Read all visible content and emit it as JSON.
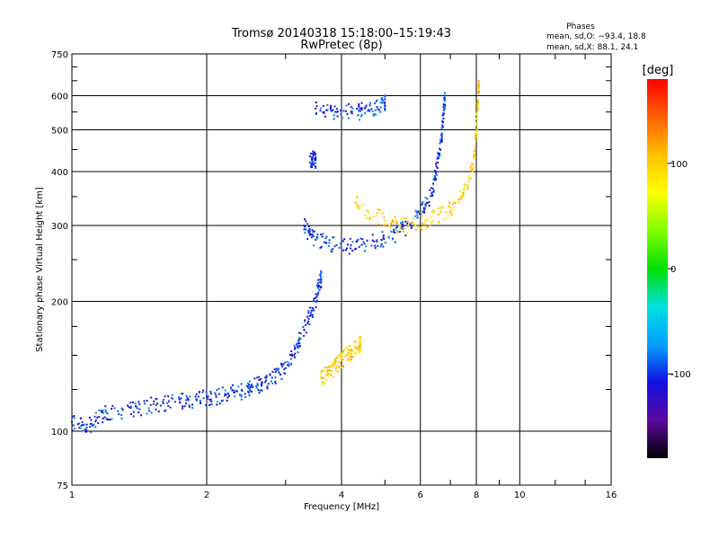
{
  "chart_data": {
    "type": "scatter",
    "title": "Tromsø 20140318 15:18:00–15:19:43",
    "subtitle": "RwPretec (8p)",
    "xlabel": "Frequency [MHz]",
    "ylabel": "Stationary phase Virtual Height [km]",
    "x_scale": "log",
    "y_scale": "log",
    "xlim": [
      1,
      16
    ],
    "ylim": [
      75,
      750
    ],
    "x_ticks": [
      1,
      2,
      4,
      6,
      8,
      10,
      16
    ],
    "y_ticks": [
      75,
      100,
      200,
      300,
      400,
      500,
      600,
      750
    ],
    "grid": true,
    "colorbar": {
      "label": "[deg]",
      "min": -180,
      "max": 180,
      "ticks": [
        100,
        0,
        -100
      ],
      "colors": [
        "#000000",
        "#5a0aa0",
        "#1010e0",
        "#00a0ff",
        "#00e0e0",
        "#00e000",
        "#80ff00",
        "#ffff00",
        "#ffc000",
        "#ff6000",
        "#ff0000"
      ]
    },
    "stats": {
      "heading": "Phases",
      "O": "mean, sd,O:  −93.4, 18.8",
      "X": "mean, sd,X:   88.1, 24.1"
    },
    "series": [
      {
        "trace": "E / low-layer O trace",
        "phase_mean": -100,
        "points": [
          [
            1.0,
            105
          ],
          [
            1.05,
            103
          ],
          [
            1.1,
            104
          ],
          [
            1.15,
            108
          ],
          [
            1.2,
            110
          ],
          [
            1.3,
            112
          ],
          [
            1.4,
            113
          ],
          [
            1.5,
            115
          ],
          [
            1.6,
            116
          ],
          [
            1.7,
            117
          ],
          [
            1.8,
            118
          ],
          [
            1.9,
            118
          ],
          [
            2.0,
            120
          ],
          [
            2.1,
            120
          ],
          [
            2.2,
            122
          ],
          [
            2.3,
            123
          ],
          [
            2.4,
            124
          ],
          [
            2.5,
            126
          ],
          [
            2.6,
            128
          ],
          [
            2.7,
            130
          ],
          [
            2.8,
            133
          ],
          [
            2.9,
            137
          ],
          [
            3.0,
            140
          ],
          [
            3.1,
            150
          ],
          [
            3.2,
            160
          ],
          [
            3.3,
            172
          ],
          [
            3.4,
            185
          ],
          [
            3.5,
            200
          ],
          [
            3.55,
            215
          ],
          [
            3.6,
            225
          ]
        ]
      },
      {
        "trace": "low-layer X trace",
        "phase_mean": 100,
        "points": [
          [
            3.6,
            133
          ],
          [
            3.7,
            135
          ],
          [
            3.8,
            138
          ],
          [
            3.9,
            142
          ],
          [
            4.0,
            146
          ],
          [
            4.1,
            150
          ],
          [
            4.2,
            153
          ],
          [
            4.3,
            156
          ],
          [
            4.4,
            160
          ]
        ]
      },
      {
        "trace": "F2 O trace",
        "phase_mean": -100,
        "points": [
          [
            3.3,
            300
          ],
          [
            3.4,
            285
          ],
          [
            3.5,
            278
          ],
          [
            3.7,
            273
          ],
          [
            3.9,
            270
          ],
          [
            4.2,
            270
          ],
          [
            4.5,
            272
          ],
          [
            4.8,
            276
          ],
          [
            5.1,
            282
          ],
          [
            5.4,
            290
          ],
          [
            5.7,
            302
          ],
          [
            6.0,
            318
          ],
          [
            6.2,
            338
          ],
          [
            6.4,
            365
          ],
          [
            6.5,
            400
          ],
          [
            6.6,
            440
          ],
          [
            6.7,
            490
          ],
          [
            6.75,
            540
          ],
          [
            6.8,
            590
          ]
        ]
      },
      {
        "trace": "F2 X trace",
        "phase_mean": 100,
        "points": [
          [
            4.3,
            340
          ],
          [
            4.6,
            322
          ],
          [
            5.0,
            308
          ],
          [
            5.4,
            300
          ],
          [
            5.8,
            302
          ],
          [
            6.2,
            308
          ],
          [
            6.6,
            318
          ],
          [
            7.0,
            330
          ],
          [
            7.4,
            350
          ],
          [
            7.7,
            380
          ],
          [
            7.9,
            430
          ],
          [
            8.0,
            490
          ],
          [
            8.05,
            560
          ],
          [
            8.1,
            630
          ]
        ]
      },
      {
        "trace": "upper echo",
        "phase_mean": -100,
        "points": [
          [
            3.5,
            560
          ],
          [
            3.7,
            555
          ],
          [
            3.9,
            550
          ],
          [
            4.2,
            550
          ],
          [
            4.4,
            552
          ],
          [
            4.6,
            556
          ],
          [
            4.8,
            565
          ],
          [
            5.0,
            580
          ]
        ]
      },
      {
        "trace": "spur near 3.4 MHz",
        "phase_mean": -100,
        "points": [
          [
            3.4,
            420
          ],
          [
            3.45,
            430
          ],
          [
            3.5,
            425
          ]
        ]
      }
    ]
  }
}
